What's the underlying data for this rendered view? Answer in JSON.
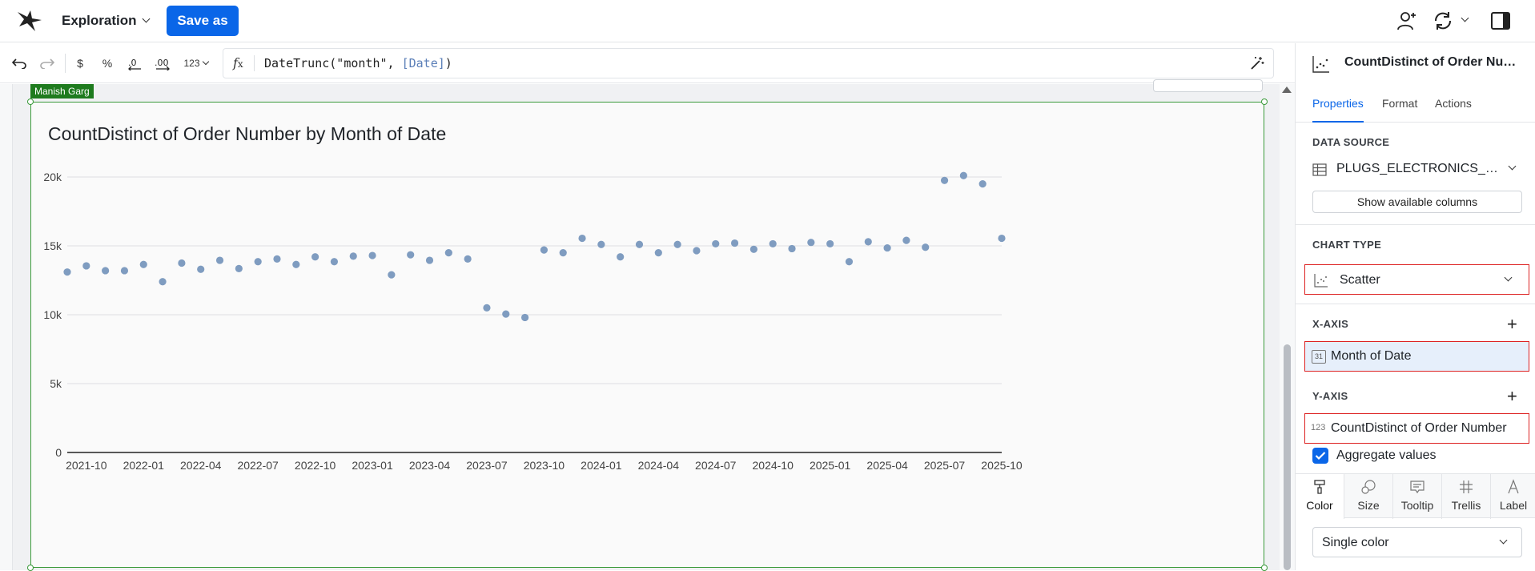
{
  "topbar": {
    "exploration_label": "Exploration",
    "save_as_label": "Save as"
  },
  "formula_bar": {
    "number_format_label": "123",
    "currency_label": "$",
    "percent_label": "%",
    "formula_function": "DateTrunc(\"month\", ",
    "formula_ref": "[Date]",
    "formula_close": ")"
  },
  "canvas": {
    "owner_tag": "Manish Garg"
  },
  "chart_data": {
    "type": "scatter",
    "title": "CountDistinct of Order Number by Month of Date",
    "xlabel": "",
    "ylabel": "",
    "x_tick_labels": [
      "2021-10",
      "2022-01",
      "2022-04",
      "2022-07",
      "2022-10",
      "2023-01",
      "2023-04",
      "2023-07",
      "2023-10",
      "2024-01",
      "2024-04",
      "2024-07",
      "2024-10",
      "2025-01",
      "2025-04",
      "2025-07",
      "2025-10"
    ],
    "y_tick_labels": [
      "0",
      "5k",
      "10k",
      "15k",
      "20k"
    ],
    "y_ticks": [
      0,
      5000,
      10000,
      15000,
      20000
    ],
    "ylim": [
      0,
      20000
    ],
    "grid": true,
    "point_color": "#7f9cc0",
    "x": [
      "2021-09",
      "2021-10",
      "2021-11",
      "2021-12",
      "2022-01",
      "2022-02",
      "2022-03",
      "2022-04",
      "2022-05",
      "2022-06",
      "2022-07",
      "2022-08",
      "2022-09",
      "2022-10",
      "2022-11",
      "2022-12",
      "2023-01",
      "2023-02",
      "2023-03",
      "2023-04",
      "2023-05",
      "2023-06",
      "2023-07",
      "2023-08",
      "2023-09",
      "2023-10",
      "2023-11",
      "2023-12",
      "2024-01",
      "2024-02",
      "2024-03",
      "2024-04",
      "2024-05",
      "2024-06",
      "2024-07",
      "2024-08",
      "2024-09",
      "2024-10",
      "2024-11",
      "2024-12",
      "2025-01",
      "2025-02",
      "2025-03",
      "2025-04",
      "2025-05",
      "2025-06",
      "2025-07",
      "2025-08",
      "2025-09",
      "2025-10"
    ],
    "y": [
      13100,
      13550,
      13200,
      13200,
      13650,
      12400,
      13750,
      13300,
      13950,
      13350,
      13850,
      14050,
      13650,
      14200,
      13850,
      14250,
      14300,
      12900,
      14350,
      13950,
      14500,
      14050,
      10500,
      10050,
      9800,
      14700,
      14500,
      15550,
      15100,
      14200,
      15100,
      14500,
      15100,
      14650,
      15150,
      15200,
      14750,
      15150,
      14800,
      15250,
      15150,
      13850,
      15300,
      14850,
      15400,
      14900,
      19750,
      20100,
      19500,
      15550
    ]
  },
  "right_panel": {
    "title": "CountDistinct of Order Number",
    "tabs": [
      "Properties",
      "Format",
      "Actions"
    ],
    "data_source_label": "DATA SOURCE",
    "data_source_name": "PLUGS_ELECTRONICS_HANDS_ON_LAB_DATA",
    "show_columns_label": "Show available columns",
    "chart_type_label": "CHART TYPE",
    "chart_type_value": "Scatter",
    "x_axis_label": "X-AXIS",
    "x_axis_field": "Month of Date",
    "x_axis_field_icon": "31",
    "y_axis_label": "Y-AXIS",
    "y_axis_field": "CountDistinct of Order Number",
    "y_axis_field_icon": "123",
    "aggregate_label": "Aggregate values",
    "aggregate_checked": true,
    "mark_tabs": [
      "Color",
      "Size",
      "Tooltip",
      "Trellis",
      "Label"
    ],
    "color_mode": "Single color",
    "accent_color": "#0a66e8"
  }
}
